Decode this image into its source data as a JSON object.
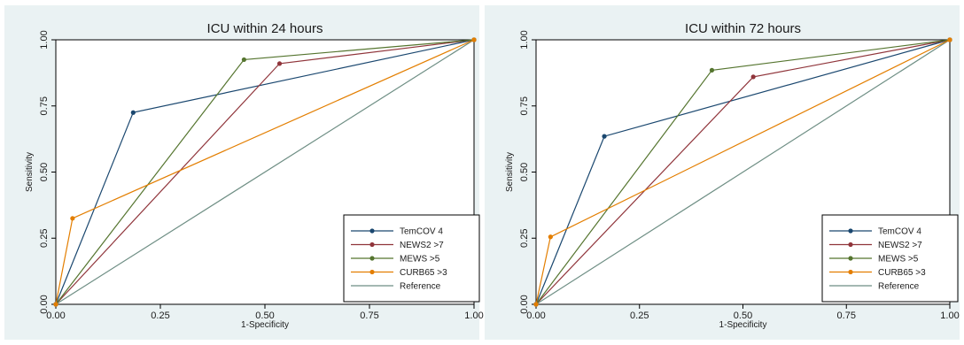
{
  "colors": {
    "outer_bg": "#eaf2f3",
    "plot_bg": "#ffffff",
    "TemCOV 4": "#1a476f",
    "NEWS2 >7": "#90353b",
    "MEWS >5": "#55752f",
    "CURB65 >3": "#e37e00",
    "Reference": "#6e8e84"
  },
  "chart_data": [
    {
      "type": "line",
      "title": "ICU within 24 hours",
      "xlabel": "1-Specificity",
      "ylabel": "Sensitivity",
      "xlim": [
        0,
        1
      ],
      "ylim": [
        0,
        1
      ],
      "xticks": [
        "0.00",
        "0.25",
        "0.50",
        "0.75",
        "1.00"
      ],
      "yticks": [
        "0.00",
        "0.25",
        "0.50",
        "0.75",
        "1.00"
      ],
      "legend_position": "bottom-right",
      "series": [
        {
          "name": "TemCOV 4",
          "marker": true,
          "points": [
            [
              0,
              0
            ],
            [
              0.185,
              0.725
            ],
            [
              1,
              1
            ]
          ]
        },
        {
          "name": "NEWS2 >7",
          "marker": true,
          "points": [
            [
              0,
              0
            ],
            [
              0.535,
              0.91
            ],
            [
              1,
              1
            ]
          ]
        },
        {
          "name": "MEWS >5",
          "marker": true,
          "points": [
            [
              0,
              0
            ],
            [
              0.45,
              0.925
            ],
            [
              1,
              1
            ]
          ]
        },
        {
          "name": "CURB65 >3",
          "marker": true,
          "points": [
            [
              0,
              0
            ],
            [
              0.04,
              0.325
            ],
            [
              1,
              1
            ]
          ]
        },
        {
          "name": "Reference",
          "marker": false,
          "points": [
            [
              0,
              0
            ],
            [
              1,
              1
            ]
          ]
        }
      ]
    },
    {
      "type": "line",
      "title": "ICU within 72 hours",
      "xlabel": "1-Specificity",
      "ylabel": "Sensitivity",
      "xlim": [
        0,
        1
      ],
      "ylim": [
        0,
        1
      ],
      "xticks": [
        "0.00",
        "0.25",
        "0.50",
        "0.75",
        "1.00"
      ],
      "yticks": [
        "0.00",
        "0.25",
        "0.50",
        "0.75",
        "1.00"
      ],
      "legend_position": "bottom-right",
      "series": [
        {
          "name": "TemCOV 4",
          "marker": true,
          "points": [
            [
              0,
              0
            ],
            [
              0.165,
              0.635
            ],
            [
              1,
              1
            ]
          ]
        },
        {
          "name": "NEWS2 >7",
          "marker": true,
          "points": [
            [
              0,
              0
            ],
            [
              0.525,
              0.86
            ],
            [
              1,
              1
            ]
          ]
        },
        {
          "name": "MEWS >5",
          "marker": true,
          "points": [
            [
              0,
              0
            ],
            [
              0.425,
              0.885
            ],
            [
              1,
              1
            ]
          ]
        },
        {
          "name": "CURB65 >3",
          "marker": true,
          "points": [
            [
              0,
              0
            ],
            [
              0.035,
              0.255
            ],
            [
              1,
              1
            ]
          ]
        },
        {
          "name": "Reference",
          "marker": false,
          "points": [
            [
              0,
              0
            ],
            [
              1,
              1
            ]
          ]
        }
      ]
    }
  ]
}
